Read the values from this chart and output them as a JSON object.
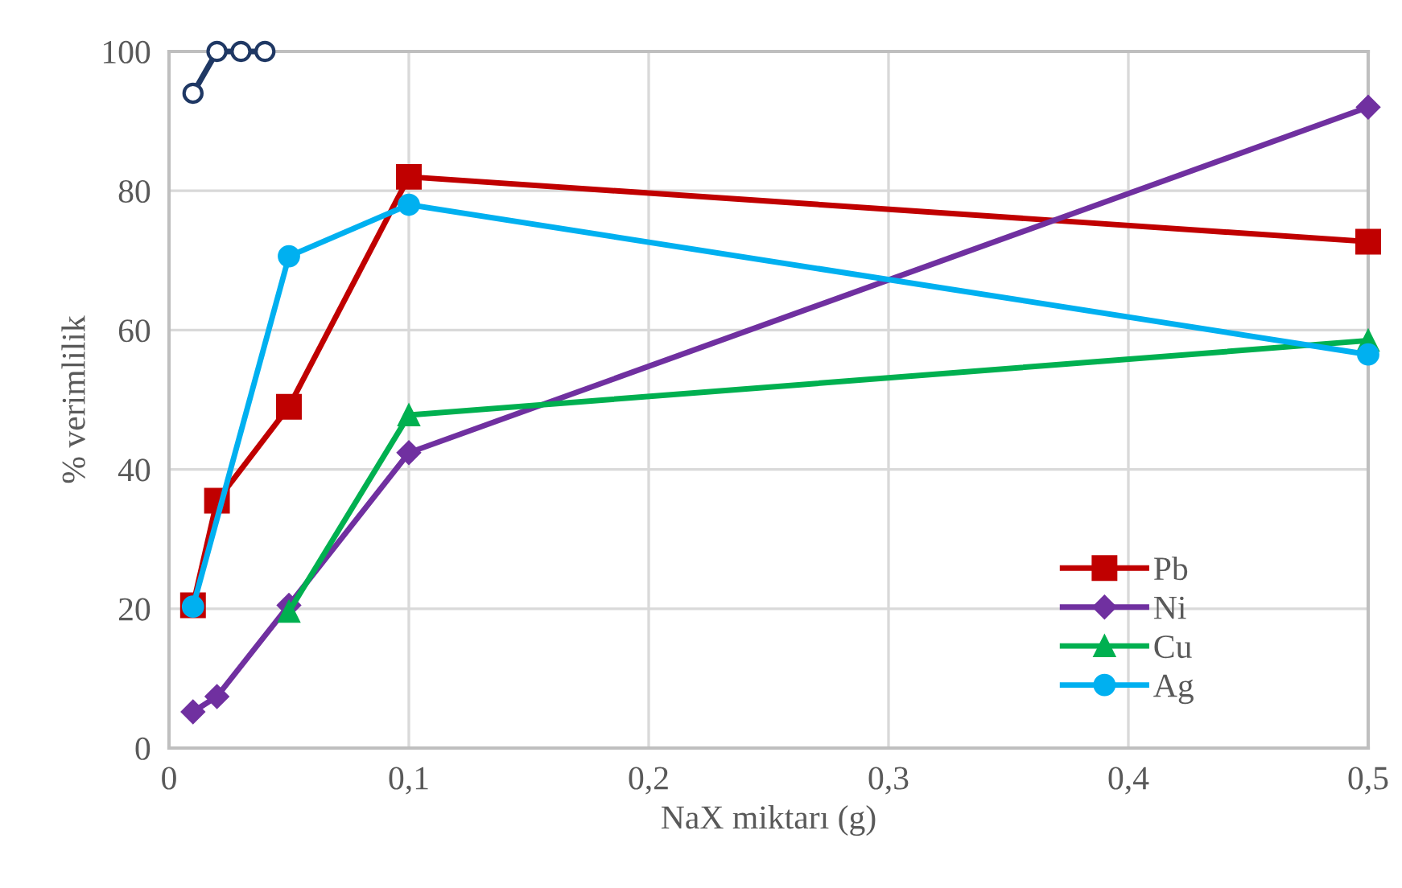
{
  "chart_data": {
    "type": "line",
    "xlabel": "NaX miktarı (g)",
    "ylabel": "% verimlilik",
    "xlim": [
      0,
      0.5
    ],
    "ylim": [
      0,
      100
    ],
    "xticks": [
      0,
      {
        "value": 0.1,
        "label": "0,1"
      },
      {
        "value": 0.2,
        "label": "0,2"
      },
      {
        "value": 0.3,
        "label": "0,3"
      },
      {
        "value": 0.4,
        "label": "0,4"
      },
      {
        "value": 0.5,
        "label": "0,5"
      }
    ],
    "yticks": [
      0,
      20,
      40,
      60,
      80,
      100
    ],
    "grid": true,
    "legend": "bottom right",
    "line_style": "solid",
    "series": [
      {
        "name": "Pb",
        "color": "#c00000",
        "marker": "square",
        "x": [
          0.01,
          0.02,
          0.05,
          0.1,
          0.5
        ],
        "values": [
          20.5,
          35.5,
          49,
          82,
          72.7
        ]
      },
      {
        "name": "Ni",
        "color": "#7030a0",
        "marker": "diamond",
        "x": [
          0.01,
          0.02,
          0.05,
          0.1,
          0.5
        ],
        "values": [
          5.2,
          7.4,
          20.5,
          42.4,
          92
        ]
      },
      {
        "name": "Cu",
        "color": "#00b050",
        "marker": "triangle",
        "x": [
          0.05,
          0.1,
          0.5
        ],
        "values": [
          19.6,
          47.8,
          58.5
        ]
      },
      {
        "name": "Ag",
        "color": "#00b0f0",
        "marker": "circle",
        "x": [
          0.01,
          0.05,
          0.1,
          0.5
        ],
        "values": [
          20.3,
          70.6,
          78,
          56.5
        ]
      },
      {
        "color": "#1f3864",
        "marker": "circle",
        "x": [
          0.01,
          0.02,
          0.03,
          0.04
        ],
        "values": [
          94,
          100,
          100,
          100
        ]
      }
    ]
  }
}
